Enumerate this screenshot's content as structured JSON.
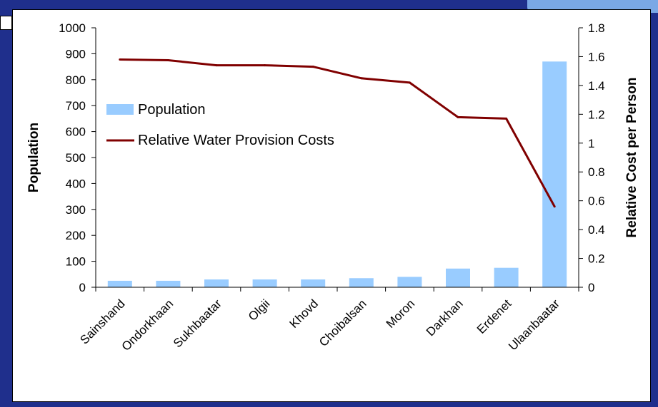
{
  "chart_data": {
    "type": "bar+line",
    "categories": [
      "Sainshand",
      "Ondorkhaan",
      "Sukhbaatar",
      "Olgii",
      "Khovd",
      "Choibalsan",
      "Moron",
      "Darkhan",
      "Erdenet",
      "Ulaanbaatar"
    ],
    "series": [
      {
        "name": "Population",
        "type": "bar",
        "axis": "left",
        "values": [
          25,
          25,
          30,
          30,
          30,
          35,
          40,
          72,
          75,
          870
        ]
      },
      {
        "name": "Relative Water Provision Costs",
        "type": "line",
        "axis": "right",
        "values": [
          1.58,
          1.575,
          1.54,
          1.54,
          1.53,
          1.45,
          1.42,
          1.18,
          1.17,
          0.56
        ]
      }
    ],
    "ylabel": "Population",
    "y2label": "Relative Cost per Person",
    "ylim": [
      0,
      1000
    ],
    "y2lim": [
      0,
      1.8
    ],
    "yticks": [
      "0",
      "100",
      "200",
      "300",
      "400",
      "500",
      "600",
      "700",
      "800",
      "900",
      "1000"
    ],
    "y2ticks": [
      "0",
      "0.2",
      "0.4",
      "0.6",
      "0.8",
      "1",
      "1.2",
      "1.4",
      "1.6",
      "1.8"
    ],
    "legend_position": "left-middle",
    "grid": false,
    "colors": {
      "bar": "#99ccff",
      "line": "#800000"
    }
  }
}
